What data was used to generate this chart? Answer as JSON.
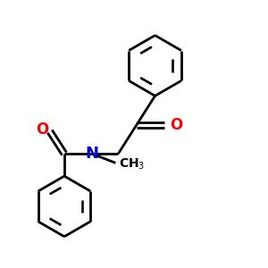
{
  "bg_color": "#ffffff",
  "bond_color": "#000000",
  "o_color": "#ff0000",
  "n_color": "#0000cd",
  "line_width": 2.0,
  "figsize": [
    3.0,
    3.0
  ],
  "dpi": 100,
  "xlim": [
    0,
    10
  ],
  "ylim": [
    0,
    10
  ]
}
